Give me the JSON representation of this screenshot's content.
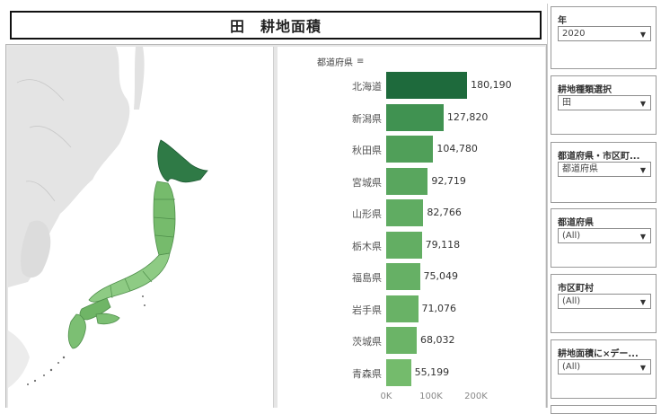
{
  "header": {
    "title": "田　耕地面積"
  },
  "bar_chart": {
    "field_header": "都道府県",
    "sort_icon": "sort-descending-icon",
    "axis_ticks": [
      "0K",
      "100K",
      "200K"
    ]
  },
  "colors": {
    "bar_dark": "#1e6a3c",
    "bar_mid": "#3e9150",
    "bar_light": "#74bb6c",
    "map_hokkaido": "#2f7a46",
    "map_land": "#7cbf73"
  },
  "chart_data": {
    "type": "bar",
    "orientation": "horizontal",
    "categories": [
      "北海道",
      "新潟県",
      "秋田県",
      "宮城県",
      "山形県",
      "栃木県",
      "福島県",
      "岩手県",
      "茨城県",
      "青森県"
    ],
    "values": [
      180190,
      127820,
      104780,
      92719,
      82766,
      79118,
      75049,
      71076,
      68032,
      55199
    ],
    "value_labels": [
      "180,190",
      "127,820",
      "104,780",
      "92,719",
      "82,766",
      "79,118",
      "75,049",
      "71,076",
      "68,032",
      "55,199"
    ],
    "xlim": [
      0,
      200000
    ],
    "ylabel": "都道府県",
    "grid": false
  },
  "filters": [
    {
      "title": "年",
      "value": "2020"
    },
    {
      "title": "耕地種類選択",
      "value": "田"
    },
    {
      "title": "都道府県・市区町...",
      "value": "都道府県"
    },
    {
      "title": "都道府県",
      "value": "(All)"
    },
    {
      "title": "市区町村",
      "value": "(All)"
    },
    {
      "title": "耕地面積に×デー...",
      "value": "(All)"
    }
  ]
}
